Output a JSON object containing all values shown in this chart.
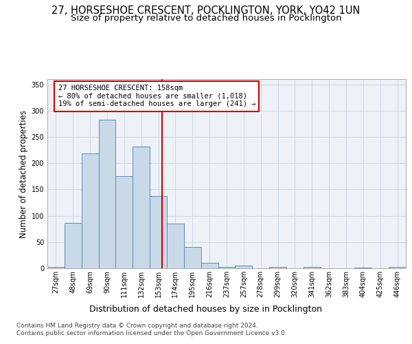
{
  "title_line1": "27, HORSESHOE CRESCENT, POCKLINGTON, YORK, YO42 1UN",
  "title_line2": "Size of property relative to detached houses in Pocklington",
  "xlabel": "Distribution of detached houses by size in Pocklington",
  "ylabel": "Number of detached properties",
  "footer_line1": "Contains HM Land Registry data © Crown copyright and database right 2024.",
  "footer_line2": "Contains public sector information licensed under the Open Government Licence v3.0.",
  "bin_labels": [
    "27sqm",
    "48sqm",
    "69sqm",
    "90sqm",
    "111sqm",
    "132sqm",
    "153sqm",
    "174sqm",
    "195sqm",
    "216sqm",
    "237sqm",
    "257sqm",
    "278sqm",
    "299sqm",
    "320sqm",
    "341sqm",
    "362sqm",
    "383sqm",
    "404sqm",
    "425sqm",
    "446sqm"
  ],
  "bar_values": [
    3,
    86,
    218,
    283,
    175,
    232,
    138,
    85,
    40,
    10,
    3,
    5,
    0,
    3,
    0,
    3,
    0,
    0,
    1,
    0,
    2
  ],
  "bar_color": "#c9d9e8",
  "bar_edge_color": "#5a8abf",
  "annotation_box_text": "27 HORSESHOE CRESCENT: 158sqm\n← 80% of detached houses are smaller (1,018)\n19% of semi-detached houses are larger (241) →",
  "annotation_box_color": "#cc0000",
  "vline_color": "#cc0000",
  "ylim": [
    0,
    360
  ],
  "yticks": [
    0,
    50,
    100,
    150,
    200,
    250,
    300,
    350
  ],
  "grid_color": "#d0d8e8",
  "bg_color": "#eef2f8",
  "title1_fontsize": 10.5,
  "title2_fontsize": 9.5,
  "xlabel_fontsize": 9,
  "ylabel_fontsize": 8.5,
  "tick_fontsize": 7,
  "annotation_fontsize": 7.5,
  "footer_fontsize": 6.5
}
